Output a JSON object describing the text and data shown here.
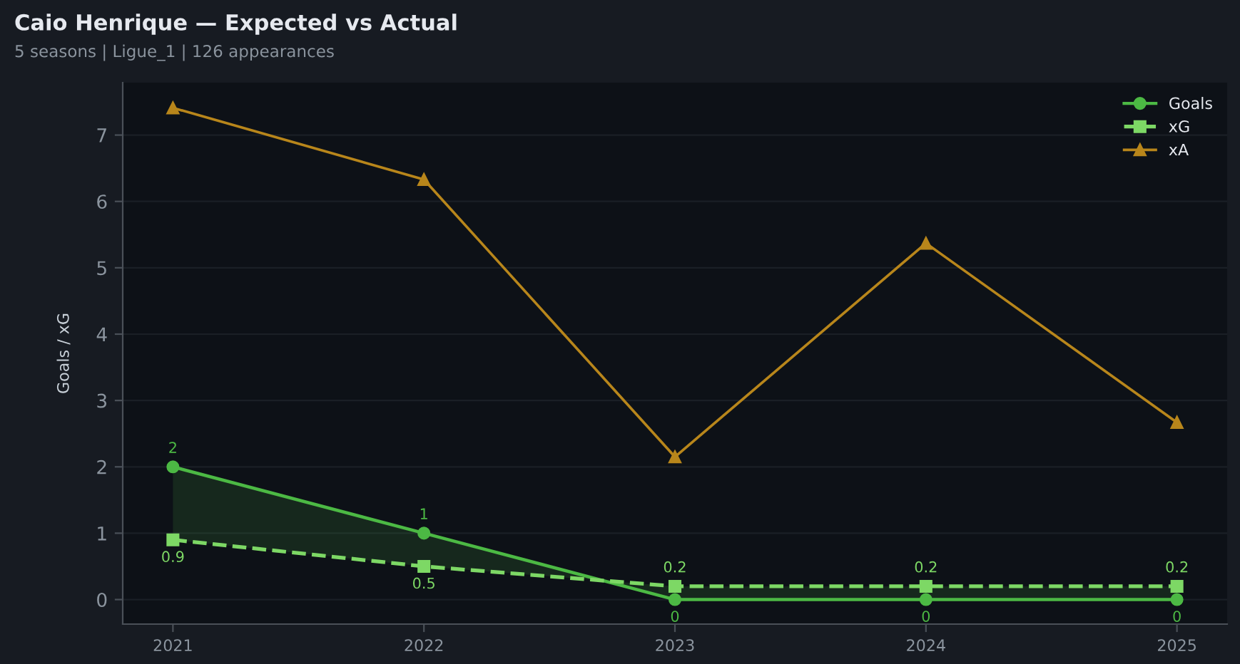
{
  "chart_data": {
    "type": "line",
    "title": "Caio Henrique — Expected vs Actual",
    "subtitle": "5 seasons | Ligue_1 | 126 appearances",
    "ylabel": "Goals / xG",
    "x": [
      2021,
      2022,
      2023,
      2024,
      2025
    ],
    "xlim": [
      2020.8,
      2025.2
    ],
    "xticks": [
      2021,
      2022,
      2023,
      2024,
      2025
    ],
    "ylim": [
      -0.37,
      7.79
    ],
    "yticks": [
      0,
      1,
      2,
      3,
      4,
      5,
      6,
      7
    ],
    "grid": "y",
    "legend": "upper right",
    "series": [
      {
        "name": "Goals",
        "color": "#4cb944",
        "values": [
          2,
          1,
          0,
          0,
          0
        ],
        "marker": "circle",
        "line_style": "solid",
        "lower": [
          0.9,
          0.5,
          0.2,
          0.2,
          0.2
        ],
        "upper": [
          2,
          1,
          0,
          0,
          0
        ],
        "value_labels": [
          "2",
          "1",
          "0",
          "0",
          "0"
        ]
      },
      {
        "name": "xG",
        "color": "#7dd865",
        "values": [
          0.9,
          0.5,
          0.2,
          0.2,
          0.2
        ],
        "marker": "square",
        "line_style": "dashed",
        "value_labels": [
          "0.9",
          "0.5",
          "0.2",
          "0.2",
          "0.2"
        ]
      },
      {
        "name": "xA",
        "color": "#b8861b",
        "values": [
          7.41,
          6.33,
          2.15,
          5.37,
          2.67
        ],
        "marker": "triangle",
        "line_style": "solid"
      }
    ]
  }
}
